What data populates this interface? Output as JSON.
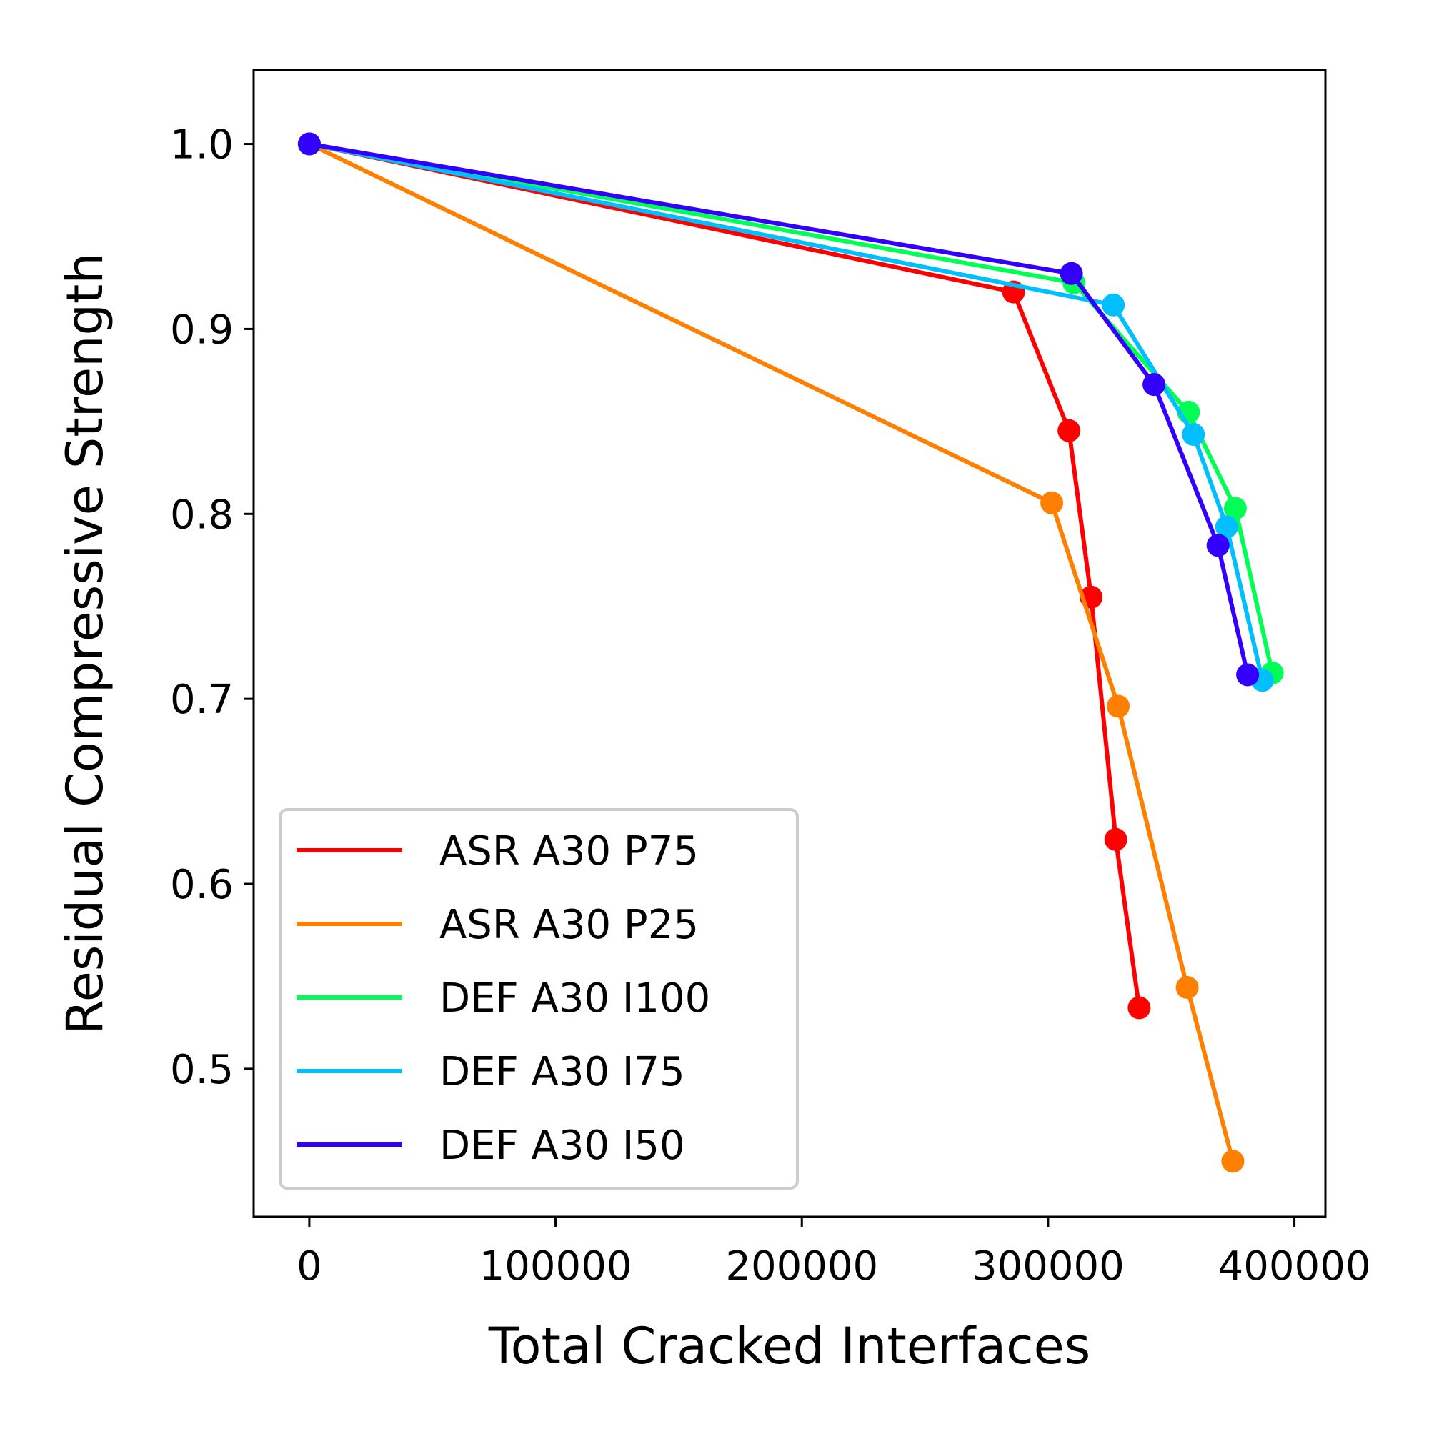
{
  "chart_data": {
    "type": "line",
    "title": "",
    "xlabel": "Total Cracked Interfaces",
    "ylabel": "Residual Compressive Strength",
    "xlim": [
      -22600,
      412600
    ],
    "ylim": [
      0.42,
      1.04
    ],
    "xticks": [
      0,
      100000,
      200000,
      300000,
      400000
    ],
    "xtick_labels": [
      "0",
      "100000",
      "200000",
      "300000",
      "400000"
    ],
    "yticks": [
      0.5,
      0.6,
      0.7,
      0.8,
      0.9,
      1.0
    ],
    "ytick_labels": [
      "0.5",
      "0.6",
      "0.7",
      "0.8",
      "0.9",
      "1.0"
    ],
    "grid": false,
    "legend_position": "lower-left",
    "series": [
      {
        "name": "ASR A30 P75",
        "color": "#ff0000",
        "points": [
          [
            0,
            1.0
          ],
          [
            286000,
            0.92
          ],
          [
            308500,
            0.845
          ],
          [
            317500,
            0.755
          ],
          [
            327500,
            0.624
          ],
          [
            337000,
            0.533
          ]
        ]
      },
      {
        "name": "ASR A30 P25",
        "color": "#ff8000",
        "points": [
          [
            0,
            1.0
          ],
          [
            301500,
            0.806
          ],
          [
            328500,
            0.696
          ],
          [
            356500,
            0.544
          ],
          [
            375000,
            0.45
          ]
        ]
      },
      {
        "name": "DEF A30 I100",
        "color": "#00ff55",
        "points": [
          [
            0,
            1.0
          ],
          [
            310500,
            0.925
          ],
          [
            357000,
            0.855
          ],
          [
            376000,
            0.803
          ],
          [
            391000,
            0.714
          ]
        ]
      },
      {
        "name": "DEF A30 I75",
        "color": "#00bfff",
        "points": [
          [
            0,
            1.0
          ],
          [
            326500,
            0.913
          ],
          [
            359000,
            0.843
          ],
          [
            372500,
            0.793
          ],
          [
            387000,
            0.71
          ]
        ]
      },
      {
        "name": "DEF A30 I50",
        "color": "#3300ff",
        "points": [
          [
            0,
            1.0
          ],
          [
            309500,
            0.93
          ],
          [
            343000,
            0.87
          ],
          [
            369000,
            0.783
          ],
          [
            381000,
            0.713
          ]
        ]
      }
    ]
  }
}
